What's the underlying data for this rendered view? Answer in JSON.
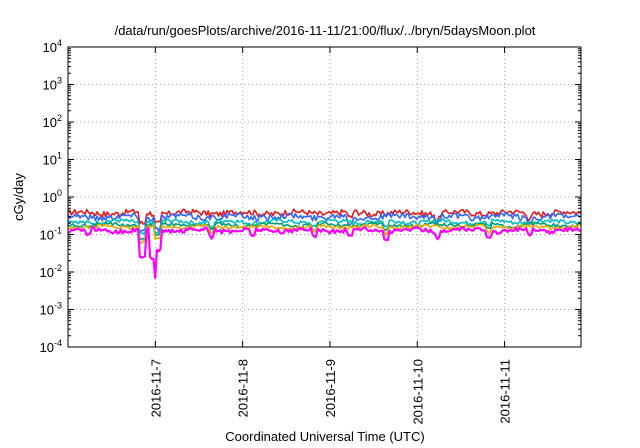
{
  "chart_data": {
    "type": "line",
    "title": "/data/run/goesPlots/archive/2016-11-11/21:00/flux/../bryn/5daysMoon.plot",
    "xlabel": "Coordinated Universal Time (UTC)",
    "ylabel": "cGy/day",
    "x_scale": "time",
    "x_range": [
      "2016-11-06T00:00",
      "2016-11-11T21:00"
    ],
    "x_ticks": [
      "2016-11-7",
      "2016-11-8",
      "2016-11-9",
      "2016-11-10",
      "2016-11-11"
    ],
    "y_scale": "log",
    "ylim": [
      0.0001,
      10000
    ],
    "y_ticks": [
      {
        "base": "10",
        "exp": "-4"
      },
      {
        "base": "10",
        "exp": "-3"
      },
      {
        "base": "10",
        "exp": "-2"
      },
      {
        "base": "10",
        "exp": "-1"
      },
      {
        "base": "10",
        "exp": "0"
      },
      {
        "base": "10",
        "exp": "1"
      },
      {
        "base": "10",
        "exp": "2"
      },
      {
        "base": "10",
        "exp": "3"
      },
      {
        "base": "10",
        "exp": "4"
      }
    ],
    "grid": true,
    "legend": "none",
    "series": [
      {
        "color": "#e41a1c",
        "base": 0.38,
        "noise": 0.18,
        "dips": [
          [
            0.145,
            0.5
          ],
          [
            0.175,
            0.55
          ],
          [
            0.55,
            0.7
          ],
          [
            0.72,
            0.7
          ],
          [
            0.9,
            0.75
          ]
        ]
      },
      {
        "color": "#3366ff",
        "base": 0.3,
        "noise": 0.18,
        "dips": [
          [
            0.145,
            0.45
          ],
          [
            0.175,
            0.5
          ],
          [
            0.55,
            0.65
          ],
          [
            0.72,
            0.7
          ],
          [
            0.9,
            0.7
          ]
        ]
      },
      {
        "color": "#00bfbf",
        "base": 0.22,
        "noise": 0.12,
        "dips": [
          [
            0.145,
            0.5
          ],
          [
            0.175,
            0.5
          ],
          [
            0.28,
            0.7
          ],
          [
            0.48,
            0.75
          ],
          [
            0.62,
            0.7
          ],
          [
            0.82,
            0.75
          ]
        ]
      },
      {
        "color": "#009e73",
        "base": 0.18,
        "noise": 0.1,
        "dips": [
          [
            0.145,
            0.45
          ],
          [
            0.175,
            0.5
          ],
          [
            0.28,
            0.7
          ],
          [
            0.48,
            0.75
          ],
          [
            0.62,
            0.7
          ],
          [
            0.82,
            0.75
          ]
        ]
      },
      {
        "color": "#e6a800",
        "base": 0.16,
        "noise": 0.1,
        "dips": [
          [
            0.145,
            0.4
          ],
          [
            0.175,
            0.45
          ],
          [
            0.28,
            0.7
          ],
          [
            0.48,
            0.75
          ],
          [
            0.62,
            0.7
          ],
          [
            0.82,
            0.75
          ]
        ]
      },
      {
        "color": "#ff00ff",
        "base": 0.13,
        "noise": 0.12,
        "dips": [
          [
            0.04,
            0.7
          ],
          [
            0.145,
            0.17
          ],
          [
            0.165,
            0.18
          ],
          [
            0.175,
            0.3
          ],
          [
            0.28,
            0.65
          ],
          [
            0.36,
            0.7
          ],
          [
            0.48,
            0.7
          ],
          [
            0.55,
            0.7
          ],
          [
            0.62,
            0.65
          ],
          [
            0.72,
            0.7
          ],
          [
            0.82,
            0.7
          ],
          [
            0.9,
            0.7
          ]
        ]
      }
    ]
  }
}
